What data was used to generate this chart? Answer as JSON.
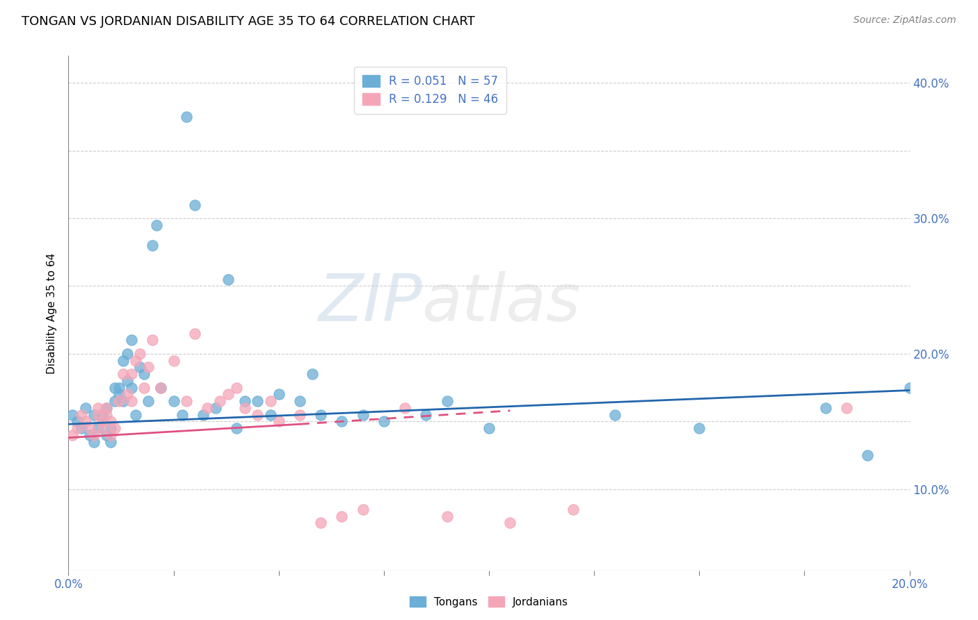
{
  "title": "TONGAN VS JORDANIAN DISABILITY AGE 35 TO 64 CORRELATION CHART",
  "source_text": "Source: ZipAtlas.com",
  "ylabel": "Disability Age 35 to 64",
  "xlim": [
    0.0,
    0.2
  ],
  "ylim": [
    0.04,
    0.42
  ],
  "tongan_color": "#6baed6",
  "jordanian_color": "#f4a6b8",
  "tongan_R": 0.051,
  "tongan_N": 57,
  "jordanian_R": 0.129,
  "jordanian_N": 46,
  "watermark_zip": "ZIP",
  "watermark_atlas": "atlas",
  "background_color": "#ffffff",
  "grid_color": "#cccccc",
  "tongan_x": [
    0.001,
    0.002,
    0.003,
    0.004,
    0.005,
    0.006,
    0.006,
    0.007,
    0.008,
    0.008,
    0.009,
    0.009,
    0.01,
    0.01,
    0.011,
    0.011,
    0.012,
    0.012,
    0.013,
    0.013,
    0.014,
    0.014,
    0.015,
    0.015,
    0.016,
    0.017,
    0.018,
    0.019,
    0.02,
    0.021,
    0.022,
    0.025,
    0.027,
    0.028,
    0.03,
    0.032,
    0.035,
    0.038,
    0.04,
    0.042,
    0.045,
    0.048,
    0.05,
    0.055,
    0.058,
    0.06,
    0.065,
    0.07,
    0.075,
    0.085,
    0.09,
    0.1,
    0.13,
    0.15,
    0.18,
    0.19,
    0.2
  ],
  "tongan_y": [
    0.155,
    0.15,
    0.145,
    0.16,
    0.14,
    0.135,
    0.155,
    0.145,
    0.15,
    0.155,
    0.14,
    0.16,
    0.145,
    0.135,
    0.175,
    0.165,
    0.17,
    0.175,
    0.165,
    0.195,
    0.2,
    0.18,
    0.21,
    0.175,
    0.155,
    0.19,
    0.185,
    0.165,
    0.28,
    0.295,
    0.175,
    0.165,
    0.155,
    0.375,
    0.31,
    0.155,
    0.16,
    0.255,
    0.145,
    0.165,
    0.165,
    0.155,
    0.17,
    0.165,
    0.185,
    0.155,
    0.15,
    0.155,
    0.15,
    0.155,
    0.165,
    0.145,
    0.155,
    0.145,
    0.16,
    0.125,
    0.175
  ],
  "jordanian_x": [
    0.001,
    0.002,
    0.003,
    0.004,
    0.005,
    0.006,
    0.007,
    0.007,
    0.008,
    0.008,
    0.009,
    0.009,
    0.01,
    0.01,
    0.011,
    0.012,
    0.013,
    0.014,
    0.015,
    0.015,
    0.016,
    0.017,
    0.018,
    0.019,
    0.02,
    0.022,
    0.025,
    0.028,
    0.03,
    0.033,
    0.036,
    0.038,
    0.04,
    0.042,
    0.045,
    0.048,
    0.05,
    0.055,
    0.06,
    0.065,
    0.07,
    0.08,
    0.09,
    0.105,
    0.12,
    0.185
  ],
  "jordanian_y": [
    0.14,
    0.145,
    0.155,
    0.15,
    0.145,
    0.14,
    0.155,
    0.16,
    0.145,
    0.15,
    0.155,
    0.16,
    0.15,
    0.14,
    0.145,
    0.165,
    0.185,
    0.17,
    0.165,
    0.185,
    0.195,
    0.2,
    0.175,
    0.19,
    0.21,
    0.175,
    0.195,
    0.165,
    0.215,
    0.16,
    0.165,
    0.17,
    0.175,
    0.16,
    0.155,
    0.165,
    0.15,
    0.155,
    0.075,
    0.08,
    0.085,
    0.16,
    0.08,
    0.075,
    0.085,
    0.16
  ],
  "tong_line_x": [
    0.0,
    0.2
  ],
  "tong_line_y": [
    0.148,
    0.173
  ],
  "jord_line_x": [
    0.0,
    0.105
  ],
  "jord_line_y": [
    0.138,
    0.158
  ]
}
